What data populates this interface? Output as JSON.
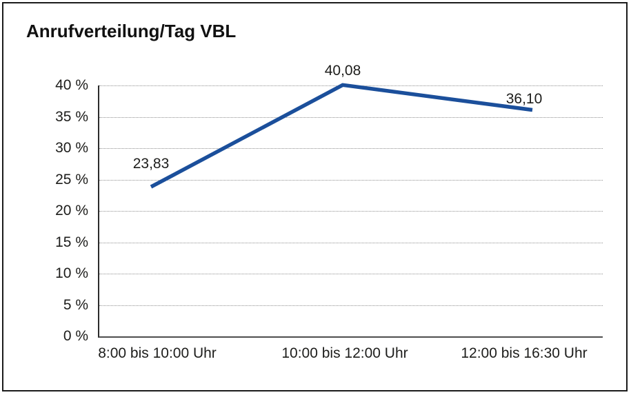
{
  "title": "Anrufverteilung/Tag VBL",
  "colors": {
    "line": "#1B4F9B",
    "gridline": "#8f8f8f",
    "axis": "#2b2b2b",
    "text": "#1d1d1b",
    "frame_border": "#1a1a1a",
    "background": "#ffffff"
  },
  "chart_data": {
    "type": "line",
    "title": "Anrufverteilung/Tag VBL",
    "categories": [
      "8:00 bis 10:00 Uhr",
      "10:00 bis 12:00 Uhr",
      "12:00 bis 16:30 Uhr"
    ],
    "series": [
      {
        "name": "Anrufverteilung/Tag VBL",
        "values": [
          23.83,
          40.08,
          36.1
        ]
      }
    ],
    "data_labels": [
      "23,83",
      "40,08",
      "36,10"
    ],
    "y_ticks": [
      {
        "value": 0,
        "label": "0 %"
      },
      {
        "value": 5,
        "label": "5 %"
      },
      {
        "value": 10,
        "label": "10 %"
      },
      {
        "value": 15,
        "label": "15 %"
      },
      {
        "value": 20,
        "label": "20 %"
      },
      {
        "value": 25,
        "label": "25 %"
      },
      {
        "value": 30,
        "label": "30 %"
      },
      {
        "value": 35,
        "label": "35 %"
      },
      {
        "value": 40,
        "label": "40 %"
      }
    ],
    "xlabel": "",
    "ylabel": "",
    "ylim": [
      0,
      40
    ],
    "grid": "horizontal-dotted",
    "legend": "none",
    "line_color": "#1B4F9B"
  }
}
